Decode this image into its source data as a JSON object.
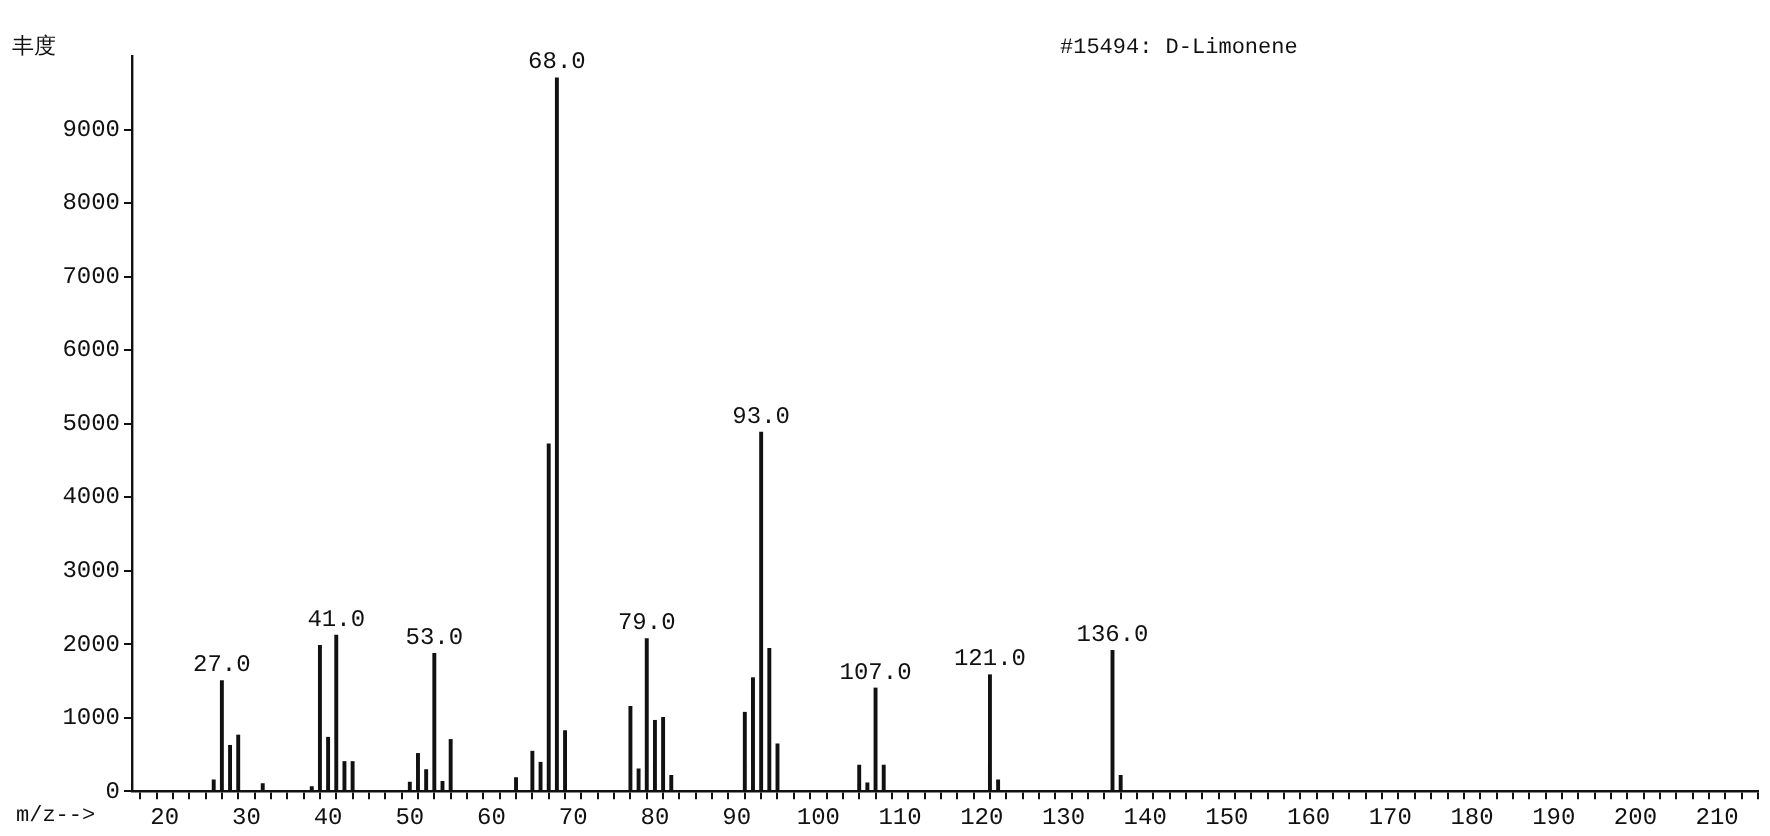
{
  "chart_data": {
    "type": "bar",
    "title": "#15494: D-Limonene",
    "xlabel": "m/z-->",
    "ylabel": "丰度",
    "x": [
      26,
      27,
      28,
      29,
      32,
      38,
      39,
      40,
      41,
      42,
      43,
      50,
      51,
      52,
      53,
      54,
      55,
      63,
      65,
      66,
      67,
      68,
      69,
      77,
      78,
      79,
      80,
      81,
      82,
      91,
      92,
      93,
      94,
      95,
      105,
      106,
      107,
      108,
      121,
      122,
      136,
      137
    ],
    "values": [
      150,
      1500,
      620,
      760,
      100,
      60,
      1980,
      730,
      2120,
      400,
      400,
      120,
      510,
      290,
      1870,
      130,
      700,
      180,
      540,
      390,
      4720,
      9700,
      820,
      1150,
      300,
      2070,
      960,
      1000,
      210,
      1070,
      1540,
      4880,
      1940,
      640,
      350,
      110,
      1400,
      350,
      1580,
      150,
      1910,
      210
    ],
    "color": "#111111",
    "xlim": [
      16,
      215
    ],
    "ylim": [
      0,
      10000
    ],
    "xticks": [
      {
        "value": 18,
        "label": null
      },
      20,
      {
        "value": 22,
        "label": null
      },
      {
        "value": 24,
        "label": null
      },
      {
        "value": 26,
        "label": null
      },
      {
        "value": 28,
        "label": null
      },
      30,
      {
        "value": 32,
        "label": null
      },
      {
        "value": 34,
        "label": null
      },
      {
        "value": 36,
        "label": null
      },
      {
        "value": 38,
        "label": null
      },
      40,
      {
        "value": 42,
        "label": null
      },
      {
        "value": 44,
        "label": null
      },
      {
        "value": 46,
        "label": null
      },
      {
        "value": 48,
        "label": null
      },
      50,
      {
        "value": 52,
        "label": null
      },
      {
        "value": 54,
        "label": null
      },
      {
        "value": 56,
        "label": null
      },
      {
        "value": 58,
        "label": null
      },
      60,
      {
        "value": 62,
        "label": null
      },
      {
        "value": 64,
        "label": null
      },
      {
        "value": 66,
        "label": null
      },
      {
        "value": 68,
        "label": null
      },
      70,
      {
        "value": 72,
        "label": null
      },
      {
        "value": 74,
        "label": null
      },
      {
        "value": 76,
        "label": null
      },
      {
        "value": 78,
        "label": null
      },
      80,
      {
        "value": 82,
        "label": null
      },
      {
        "value": 84,
        "label": null
      },
      {
        "value": 86,
        "label": null
      },
      {
        "value": 88,
        "label": null
      },
      90,
      {
        "value": 92,
        "label": null
      },
      {
        "value": 94,
        "label": null
      },
      {
        "value": 96,
        "label": null
      },
      {
        "value": 98,
        "label": null
      },
      100,
      {
        "value": 102,
        "label": null
      },
      {
        "value": 104,
        "label": null
      },
      {
        "value": 106,
        "label": null
      },
      {
        "value": 108,
        "label": null
      },
      110,
      {
        "value": 112,
        "label": null
      },
      {
        "value": 114,
        "label": null
      },
      {
        "value": 116,
        "label": null
      },
      {
        "value": 118,
        "label": null
      },
      120,
      {
        "value": 122,
        "label": null
      },
      {
        "value": 124,
        "label": null
      },
      {
        "value": 126,
        "label": null
      },
      {
        "value": 128,
        "label": null
      },
      130,
      {
        "value": 132,
        "label": null
      },
      {
        "value": 134,
        "label": null
      },
      {
        "value": 136,
        "label": null
      },
      {
        "value": 138,
        "label": null
      },
      140,
      {
        "value": 142,
        "label": null
      },
      {
        "value": 144,
        "label": null
      },
      {
        "value": 146,
        "label": null
      },
      {
        "value": 148,
        "label": null
      },
      150,
      {
        "value": 152,
        "label": null
      },
      {
        "value": 154,
        "label": null
      },
      {
        "value": 156,
        "label": null
      },
      {
        "value": 158,
        "label": null
      },
      160,
      {
        "value": 162,
        "label": null
      },
      {
        "value": 164,
        "label": null
      },
      {
        "value": 166,
        "label": null
      },
      {
        "value": 168,
        "label": null
      },
      170,
      {
        "value": 172,
        "label": null
      },
      {
        "value": 174,
        "label": null
      },
      {
        "value": 176,
        "label": null
      },
      {
        "value": 178,
        "label": null
      },
      180,
      {
        "value": 182,
        "label": null
      },
      {
        "value": 184,
        "label": null
      },
      {
        "value": 186,
        "label": null
      },
      {
        "value": 188,
        "label": null
      },
      190,
      {
        "value": 192,
        "label": null
      },
      {
        "value": 194,
        "label": null
      },
      {
        "value": 196,
        "label": null
      },
      {
        "value": 198,
        "label": null
      },
      200,
      {
        "value": 202,
        "label": null
      },
      {
        "value": 204,
        "label": null
      },
      {
        "value": 206,
        "label": null
      },
      {
        "value": 208,
        "label": null
      },
      210,
      {
        "value": 212,
        "label": null
      },
      {
        "value": 214,
        "label": null
      }
    ],
    "yticks": [
      0,
      1000,
      2000,
      3000,
      4000,
      5000,
      6000,
      7000,
      8000,
      9000
    ],
    "annotations": [
      {
        "text": "27.0",
        "x": 27,
        "y": 1500
      },
      {
        "text": "41.0",
        "x": 41,
        "y": 2120
      },
      {
        "text": "53.0",
        "x": 53,
        "y": 1870
      },
      {
        "text": "68.0",
        "x": 68,
        "y": 9700
      },
      {
        "text": "79.0",
        "x": 79,
        "y": 2070
      },
      {
        "text": "93.0",
        "x": 93,
        "y": 4880
      },
      {
        "text": "107.0",
        "x": 107,
        "y": 1400
      },
      {
        "text": "121.0",
        "x": 121,
        "y": 1580
      },
      {
        "text": "136.0",
        "x": 136,
        "y": 1910
      }
    ],
    "grid": false,
    "legend": false
  }
}
